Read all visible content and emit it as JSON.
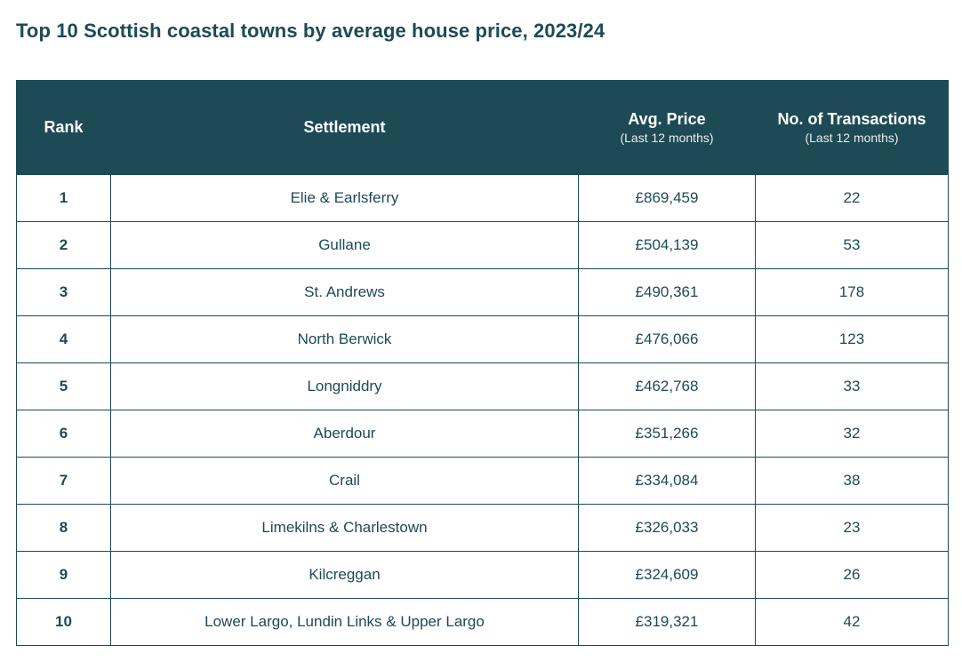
{
  "chart_data": {
    "type": "table",
    "title": "Top 10 Scottish coastal towns by average house price, 2023/24",
    "columns": [
      {
        "label": "Rank",
        "sub": ""
      },
      {
        "label": "Settlement",
        "sub": ""
      },
      {
        "label": "Avg. Price",
        "sub": "(Last 12 months)"
      },
      {
        "label": "No. of Transactions",
        "sub": "(Last 12 months)"
      }
    ],
    "rows": [
      {
        "rank": "1",
        "settlement": "Elie & Earlsferry",
        "price": "£869,459",
        "transactions": "22"
      },
      {
        "rank": "2",
        "settlement": "Gullane",
        "price": "£504,139",
        "transactions": "53"
      },
      {
        "rank": "3",
        "settlement": "St. Andrews",
        "price": "£490,361",
        "transactions": "178"
      },
      {
        "rank": "4",
        "settlement": "North Berwick",
        "price": "£476,066",
        "transactions": "123"
      },
      {
        "rank": "5",
        "settlement": "Longniddry",
        "price": "£462,768",
        "transactions": "33"
      },
      {
        "rank": "6",
        "settlement": "Aberdour",
        "price": "£351,266",
        "transactions": "32"
      },
      {
        "rank": "7",
        "settlement": "Crail",
        "price": "£334,084",
        "transactions": "38"
      },
      {
        "rank": "8",
        "settlement": "Limekilns & Charlestown",
        "price": "£326,033",
        "transactions": "23"
      },
      {
        "rank": "9",
        "settlement": "Kilcreggan",
        "price": "£324,609",
        "transactions": "26"
      },
      {
        "rank": "10",
        "settlement": "Lower Largo, Lundin Links & Upper Largo",
        "price": "£319,321",
        "transactions": "42"
      }
    ]
  },
  "colors": {
    "header_bg": "#1d4a55",
    "header_text": "#ffffff",
    "body_text": "#1d4a55",
    "border": "#1d4a55"
  }
}
